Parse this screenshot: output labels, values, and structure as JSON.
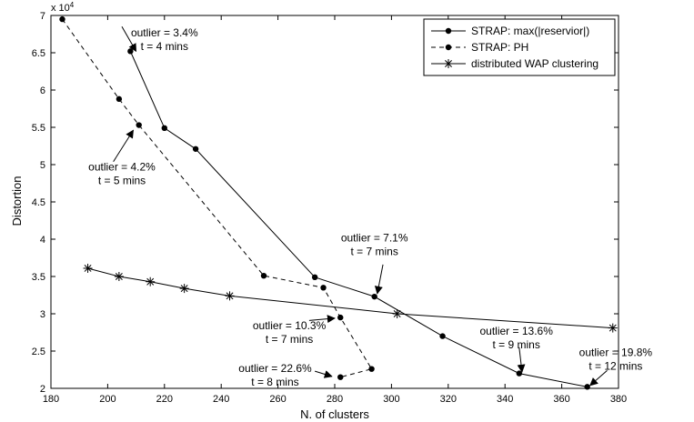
{
  "chart_data": {
    "type": "line",
    "xlabel": "N. of clusters",
    "ylabel": "Distortion",
    "y_multiplier": "x 10",
    "y_multiplier_exp": "4",
    "xlim": [
      180,
      380
    ],
    "ylim": [
      2,
      7
    ],
    "xticks": [
      "180",
      "200",
      "220",
      "240",
      "260",
      "280",
      "300",
      "320",
      "340",
      "360",
      "380"
    ],
    "yticks": [
      "2",
      "2.5",
      "3",
      "3.5",
      "4",
      "4.5",
      "5",
      "5.5",
      "6",
      "6.5",
      "7"
    ],
    "grid": false,
    "legend_position": "top-right",
    "series": [
      {
        "name": "STRAP: max(|reservior|)",
        "style": "solid",
        "marker": "dot",
        "x": [
          208,
          220,
          231,
          273,
          294,
          318,
          345,
          369
        ],
        "y": [
          6.52,
          5.49,
          5.21,
          3.49,
          3.23,
          2.7,
          2.2,
          2.02
        ]
      },
      {
        "name": "STRAP: PH",
        "style": "dashed",
        "marker": "dot",
        "x": [
          184,
          204,
          211,
          255,
          276,
          282,
          293,
          282
        ],
        "y": [
          6.95,
          5.88,
          5.53,
          3.51,
          3.35,
          2.95,
          2.26,
          2.15
        ]
      },
      {
        "name": "distributed WAP clustering",
        "style": "solid",
        "marker": "star",
        "x": [
          193,
          204,
          215,
          227,
          243,
          302,
          378
        ],
        "y": [
          3.61,
          3.5,
          3.43,
          3.34,
          3.24,
          3.0,
          2.81
        ]
      }
    ],
    "annotations": [
      {
        "line1": "outlier = 3.4%",
        "line2": "t = 4 mins",
        "tx": 220,
        "ty": 6.72,
        "ax": 210,
        "ay": 6.52,
        "fromx": 205,
        "fromy": 6.85
      },
      {
        "line1": "outlier = 4.2%",
        "line2": "t = 5 mins",
        "tx": 205,
        "ty": 4.92,
        "ax": 209,
        "ay": 5.46,
        "fromx": 202,
        "fromy": 5.04
      },
      {
        "line1": "outlier = 7.1%",
        "line2": "t = 7 mins",
        "tx": 294,
        "ty": 3.97,
        "ax": 295,
        "ay": 3.27,
        "fromx": 297,
        "fromy": 3.66
      },
      {
        "line1": "outlier = 10.3%",
        "line2": "t = 7 mins",
        "tx": 264,
        "ty": 2.79,
        "ax": 280,
        "ay": 2.94,
        "fromx": 271,
        "fromy": 2.91
      },
      {
        "line1": "outlier = 13.6%",
        "line2": "t = 9 mins",
        "tx": 344,
        "ty": 2.72,
        "ax": 346,
        "ay": 2.22,
        "fromx": 345,
        "fromy": 2.55
      },
      {
        "line1": "outlier = 19.8%",
        "line2": "t = 12 mins",
        "tx": 379,
        "ty": 2.43,
        "ax": 370,
        "ay": 2.04,
        "fromx": 376,
        "fromy": 2.24
      },
      {
        "line1": "outlier = 22.6%",
        "line2": "t = 8 mins",
        "tx": 259,
        "ty": 2.22,
        "ax": 279,
        "ay": 2.16,
        "fromx": 273,
        "fromy": 2.23
      }
    ]
  }
}
